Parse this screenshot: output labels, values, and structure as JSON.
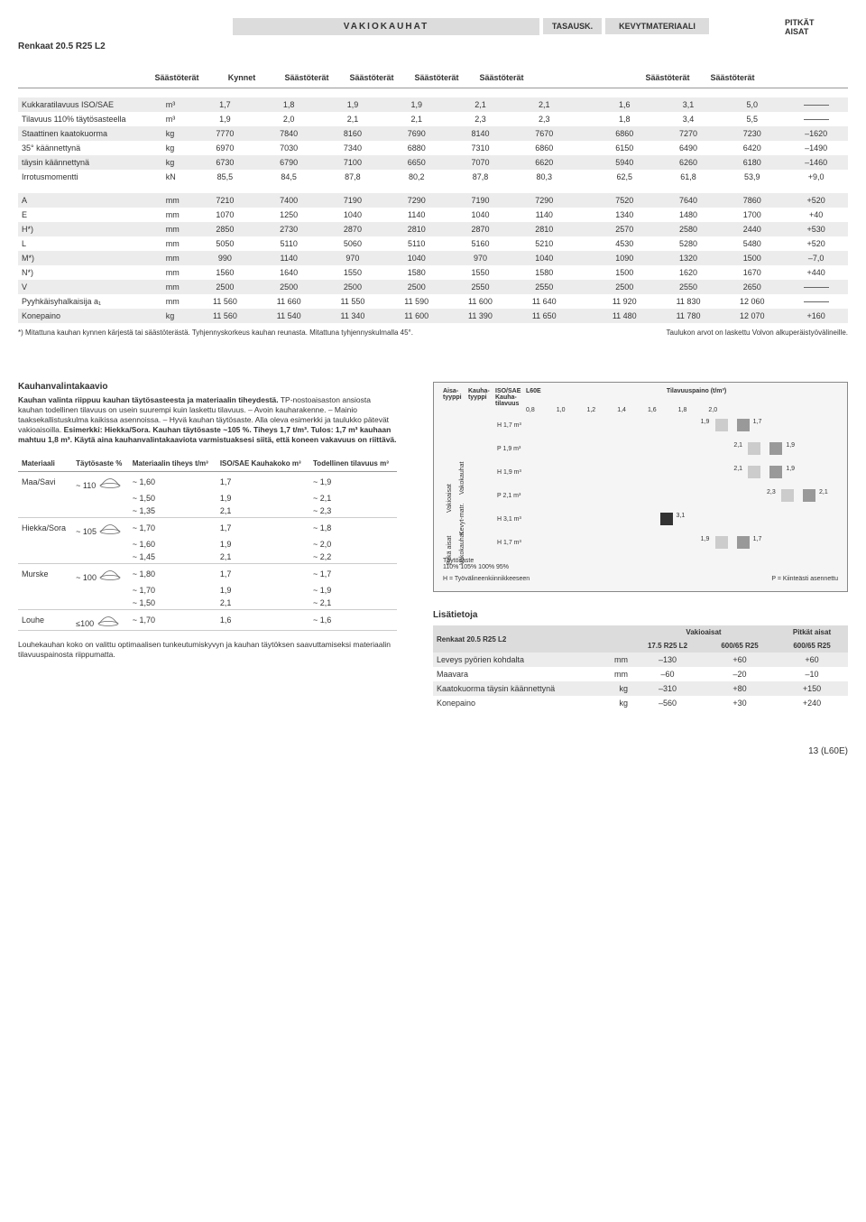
{
  "header": {
    "vakio": "VAKIOKAUHAT",
    "tasausk": "TASAUSK.",
    "kevyt": "KEVYTMATERIAALI",
    "pitkat_l1": "PITKÄT",
    "pitkat_l2": "AISAT",
    "renkaat": "Renkaat 20.5 R25 L2"
  },
  "subcols": [
    "Säästöterät",
    "Kynnet",
    "Säästöterät",
    "Säästöterät",
    "Säästöterät",
    "Säästöterät",
    "",
    "Säästöterät",
    "Säästöterät",
    ""
  ],
  "rows": [
    {
      "label": "Kukkaratilavuus ISO/SAE",
      "unit": "m³",
      "vals": [
        "1,7",
        "1,8",
        "1,9",
        "1,9",
        "2,1",
        "2,1",
        "1,6",
        "3,1",
        "5,0",
        "—"
      ]
    },
    {
      "label": "Tilavuus 110% täytösasteella",
      "unit": "m³",
      "vals": [
        "1,9",
        "2,0",
        "2,1",
        "2,1",
        "2,3",
        "2,3",
        "1,8",
        "3,4",
        "5,5",
        "—"
      ]
    },
    {
      "label": "Staattinen kaatokuorma",
      "unit": "kg",
      "vals": [
        "7770",
        "7840",
        "8160",
        "7690",
        "8140",
        "7670",
        "6860",
        "7270",
        "7230",
        "–1620"
      ]
    },
    {
      "label": " 35° käännettynä",
      "unit": "kg",
      "vals": [
        "6970",
        "7030",
        "7340",
        "6880",
        "7310",
        "6860",
        "6150",
        "6490",
        "6420",
        "–1490"
      ]
    },
    {
      "label": " täysin käännettynä",
      "unit": "kg",
      "vals": [
        "6730",
        "6790",
        "7100",
        "6650",
        "7070",
        "6620",
        "5940",
        "6260",
        "6180",
        "–1460"
      ]
    },
    {
      "label": "Irrotusmomentti",
      "unit": "kN",
      "vals": [
        "85,5",
        "84,5",
        "87,8",
        "80,2",
        "87,8",
        "80,3",
        "62,5",
        "61,8",
        "53,9",
        "+9,0"
      ]
    },
    {
      "label": "A",
      "unit": "mm",
      "vals": [
        "7210",
        "7400",
        "7190",
        "7290",
        "7190",
        "7290",
        "7520",
        "7640",
        "7860",
        "+520"
      ]
    },
    {
      "label": "E",
      "unit": "mm",
      "vals": [
        "1070",
        "1250",
        "1040",
        "1140",
        "1040",
        "1140",
        "1340",
        "1480",
        "1700",
        "+40"
      ]
    },
    {
      "label": "H*)",
      "unit": "mm",
      "vals": [
        "2850",
        "2730",
        "2870",
        "2810",
        "2870",
        "2810",
        "2570",
        "2580",
        "2440",
        "+530"
      ]
    },
    {
      "label": "L",
      "unit": "mm",
      "vals": [
        "5050",
        "5110",
        "5060",
        "5110",
        "5160",
        "5210",
        "4530",
        "5280",
        "5480",
        "+520"
      ]
    },
    {
      "label": "M*)",
      "unit": "mm",
      "vals": [
        "990",
        "1140",
        "970",
        "1040",
        "970",
        "1040",
        "1090",
        "1320",
        "1500",
        "–7,0"
      ]
    },
    {
      "label": "N*)",
      "unit": "mm",
      "vals": [
        "1560",
        "1640",
        "1550",
        "1580",
        "1550",
        "1580",
        "1500",
        "1620",
        "1670",
        "+440"
      ]
    },
    {
      "label": "V",
      "unit": "mm",
      "vals": [
        "2500",
        "2500",
        "2500",
        "2500",
        "2550",
        "2550",
        "2500",
        "2550",
        "2650",
        "—"
      ]
    },
    {
      "label": "Pyyhkäisyhalkaisija a₁",
      "unit": "mm",
      "vals": [
        "11 560",
        "11 660",
        "11 550",
        "11 590",
        "11 600",
        "11 640",
        "11 920",
        "11 830",
        "12 060",
        "—"
      ]
    },
    {
      "label": "Konepaino",
      "unit": "kg",
      "vals": [
        "11 560",
        "11 540",
        "11 340",
        "11 600",
        "11 390",
        "11 650",
        "11 480",
        "11 780",
        "12 070",
        "+160"
      ]
    }
  ],
  "footnote_l": "*) Mitattuna kauhan kynnen kärjestä tai säästöterästä. Tyhjennyskorkeus kauhan reunasta. Mitattuna tyhjennyskulmalla 45°.",
  "footnote_r": "Taulukon arvot on laskettu Volvon alkuperäistyövälineille.",
  "kauhan": {
    "title": "Kauhanvalintakaavio",
    "para": "Kauhan valinta riippuu kauhan täytösasteesta ja materiaalin tiheydestä. TP-nostoaisaston ansiosta kauhan todellinen tilavuus on usein suurempi kuin laskettu tilavuus. – Avoin kauharakenne. – Mainio taaksekallistuskulma kaikissa asennoissa. – Hyvä kauhan täytösaste. Alla oleva esimerkki ja taulukko pätevät vakioaisoilla. Esimerkki: Hiekka/Sora. Kauhan täytösaste ~105 %. Tiheys 1,7 t/m³. Tulos: 1,7 m³ kauhaan mahtuu 1,8 m³. Käytä aina kauhanvalintakaaviota varmistuaksesi siitä, että koneen vakavuus on riittävä.",
    "headers": [
      "Materiaali",
      "Täytösaste %",
      "Materiaalin tiheys t/m³",
      "ISO/SAE Kauhakoko m³",
      "Todellinen tilavuus m³"
    ],
    "groups": [
      {
        "mat": "Maa/Savi",
        "fill": "~ 110",
        "rows": [
          [
            "~ 1,60",
            "1,7",
            "~ 1,9"
          ],
          [
            "~ 1,50",
            "1,9",
            "~ 2,1"
          ],
          [
            "~ 1,35",
            "2,1",
            "~ 2,3"
          ]
        ]
      },
      {
        "mat": "Hiekka/Sora",
        "fill": "~ 105",
        "rows": [
          [
            "~ 1,70",
            "1,7",
            "~ 1,8"
          ],
          [
            "~ 1,60",
            "1,9",
            "~ 2,0"
          ],
          [
            "~ 1,45",
            "2,1",
            "~ 2,2"
          ]
        ]
      },
      {
        "mat": "Murske",
        "fill": "~ 100",
        "rows": [
          [
            "~ 1,80",
            "1,7",
            "~ 1,7"
          ],
          [
            "~ 1,70",
            "1,9",
            "~ 1,9"
          ],
          [
            "~ 1,50",
            "2,1",
            "~ 2,1"
          ]
        ]
      },
      {
        "mat": "Louhe",
        "fill": "≤100",
        "rows": [
          [
            "~ 1,70",
            "1,6",
            "~ 1,6"
          ]
        ]
      }
    ],
    "bottomnote": "Louhekauhan koko on valittu optimaalisen tunkeutumiskyvyn ja kauhan täytöksen saavuttamiseksi materiaalin tilavuuspainosta riippumatta."
  },
  "chart": {
    "col1": "Aisa-tyyppi",
    "col2": "Kauha-tyyppi",
    "col3": "ISO/SAE Kauha-tilavuus",
    "title": "L60E",
    "subtitle": "Tilavuuspaino (t/m³)",
    "ticks": [
      "0,8",
      "1,0",
      "1,2",
      "1,4",
      "1,6",
      "1,8",
      "2,0"
    ],
    "group1": "Vakioaisat",
    "sub1a": "Vakokauhat",
    "sub1b": "Kevyt-matr.",
    "group2": "Pitkä aisat",
    "sub2": "Vakokauhat",
    "rows": [
      {
        "cat": "H 1,7 m³",
        "h": "1,9",
        "p": "1,7"
      },
      {
        "cat": "P 1,9 m³",
        "h": "2,1",
        "p": "1,9"
      },
      {
        "cat": "H 1,9 m³",
        "h": "2,1",
        "p": "1,9"
      },
      {
        "cat": "P 2,1 m³",
        "h": "2,3",
        "p": "2,1"
      },
      {
        "cat": "H 3,1 m³",
        "solid": "3,1"
      },
      {
        "cat": "H 1,7 m³",
        "h": "1,9",
        "p": "1,7"
      }
    ],
    "footl": "Täytösaste",
    "footpct": "110% 105% 100% 95%",
    "legend_h": "H = Työvälineenkiinnikkeeseen",
    "legend_p": "P = Kiinteästi asennettu"
  },
  "extra": {
    "title": "Lisätietoja",
    "renkaat": "Renkaat 20.5 R25 L2",
    "colhead1": "Vakioaisat",
    "colhead2": "Pitkät aisat",
    "subcols": [
      "17.5 R25 L2",
      "600/65 R25",
      "600/65 R25"
    ],
    "rows": [
      {
        "label": "Leveys pyörien kohdalta",
        "unit": "mm",
        "vals": [
          "–130",
          "+60",
          "+60"
        ]
      },
      {
        "label": "Maavara",
        "unit": "mm",
        "vals": [
          "–60",
          "–20",
          "–10"
        ]
      },
      {
        "label": "Kaatokuorma täysin käännettynä",
        "unit": "kg",
        "vals": [
          "–310",
          "+80",
          "+150"
        ]
      },
      {
        "label": "Konepaino",
        "unit": "kg",
        "vals": [
          "–560",
          "+30",
          "+240"
        ]
      }
    ]
  },
  "pagenum": "13 (L60E)"
}
